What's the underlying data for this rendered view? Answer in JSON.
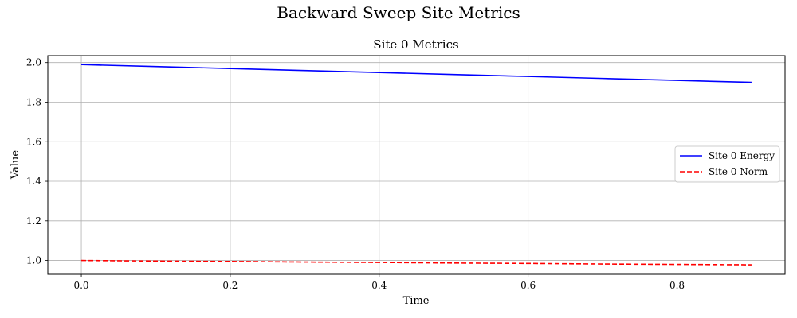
{
  "suptitle": "Backward Sweep Site Metrics",
  "chart_data": {
    "type": "line",
    "title": "Site 0 Metrics",
    "xlabel": "Time",
    "ylabel": "Value",
    "xlim": [
      -0.045,
      0.945
    ],
    "ylim": [
      0.93,
      2.035
    ],
    "xticks": [
      0.0,
      0.2,
      0.4,
      0.6,
      0.8
    ],
    "xtick_labels": [
      "0.0",
      "0.2",
      "0.4",
      "0.6",
      "0.8"
    ],
    "yticks": [
      1.0,
      1.2,
      1.4,
      1.6,
      1.8,
      2.0
    ],
    "ytick_labels": [
      "1.0",
      "1.2",
      "1.4",
      "1.6",
      "1.8",
      "2.0"
    ],
    "grid": true,
    "legend_position": "center-right",
    "x": [
      0.0,
      0.1,
      0.2,
      0.3,
      0.4,
      0.5,
      0.6,
      0.7,
      0.8,
      0.9
    ],
    "series": [
      {
        "name": "Site 0 Energy",
        "color": "#0000ff",
        "style": "solid",
        "values": [
          1.99,
          1.98,
          1.97,
          1.96,
          1.95,
          1.94,
          1.93,
          1.92,
          1.91,
          1.9
        ]
      },
      {
        "name": "Site 0 Norm",
        "color": "#ff0000",
        "style": "dashed",
        "values": [
          1.0,
          0.997,
          0.995,
          0.992,
          0.99,
          0.987,
          0.985,
          0.982,
          0.98,
          0.978
        ]
      }
    ]
  }
}
